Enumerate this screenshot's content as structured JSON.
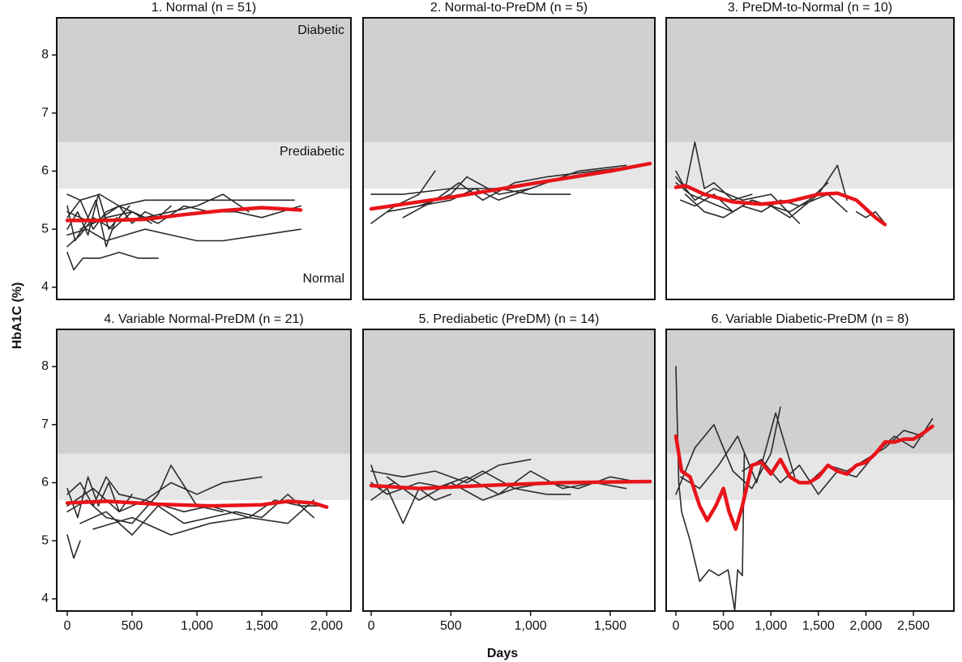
{
  "ylabel": "HbA1C (%)",
  "xlabel": "Days",
  "chart_data": [
    {
      "type": "line",
      "title": "1. Normal (n = 51)",
      "xlim": [
        -81,
        2187
      ],
      "ylim": [
        3.79,
        8.64
      ],
      "yticks": [
        4,
        5,
        6,
        7,
        8
      ],
      "bands": [
        5.7,
        6.5
      ],
      "band_colors": [
        "#e6e6e6",
        "#d0d0d0"
      ],
      "band_labels": [
        "Normal",
        "Prediabetic",
        "Diabetic"
      ],
      "series": [
        {
          "color": "#2b2b2b",
          "x": [
            0,
            100,
            200,
            300,
            400,
            500,
            600,
            700,
            800
          ],
          "values": [
            5.2,
            5.5,
            5.0,
            5.3,
            5.4,
            5.1,
            5.3,
            5.2,
            5.4
          ]
        },
        {
          "color": "#2b2b2b",
          "x": [
            0,
            150,
            300,
            450,
            600,
            800,
            1000,
            1200,
            1500,
            1800
          ],
          "values": [
            4.9,
            5.0,
            4.8,
            4.9,
            5.0,
            4.9,
            4.8,
            4.8,
            4.9,
            5.0
          ]
        },
        {
          "color": "#2b2b2b",
          "x": [
            0,
            50,
            120,
            250,
            400,
            550,
            700
          ],
          "values": [
            4.6,
            4.3,
            4.5,
            4.5,
            4.6,
            4.5,
            4.5
          ]
        },
        {
          "color": "#2b2b2b",
          "x": [
            0,
            100,
            250,
            400,
            600,
            900,
            1200,
            1500,
            1750
          ],
          "values": [
            5.6,
            5.5,
            5.6,
            5.4,
            5.5,
            5.5,
            5.5,
            5.5,
            5.5
          ]
        },
        {
          "color": "#2b2b2b",
          "x": [
            0,
            80,
            160,
            240,
            320,
            400,
            480
          ],
          "values": [
            5.0,
            5.3,
            4.9,
            5.6,
            5.0,
            5.2,
            5.4
          ]
        },
        {
          "color": "#2b2b2b",
          "x": [
            0,
            200,
            400,
            600,
            800,
            1000,
            1200,
            1400
          ],
          "values": [
            5.3,
            5.1,
            5.4,
            5.2,
            5.3,
            5.4,
            5.6,
            5.3
          ]
        },
        {
          "color": "#2b2b2b",
          "x": [
            0,
            60,
            140,
            220,
            300,
            380
          ],
          "values": [
            5.4,
            4.8,
            5.1,
            5.5,
            4.7,
            5.2
          ]
        },
        {
          "color": "#2b2b2b",
          "x": [
            100,
            300,
            500,
            700,
            900,
            1100,
            1300,
            1500,
            1800
          ],
          "values": [
            5.0,
            5.2,
            5.3,
            5.1,
            5.4,
            5.3,
            5.3,
            5.2,
            5.4
          ]
        },
        {
          "color": "#2b2b2b",
          "x": [
            0,
            100,
            200,
            350,
            500,
            650
          ],
          "values": [
            4.7,
            4.9,
            5.2,
            5.0,
            5.3,
            5.1
          ]
        }
      ],
      "trend": {
        "color": "#e8141b",
        "x": [
          0,
          300,
          600,
          900,
          1200,
          1500,
          1800
        ],
        "values": [
          5.15,
          5.15,
          5.17,
          5.25,
          5.32,
          5.37,
          5.33
        ]
      }
    },
    {
      "type": "line",
      "title": "2. Normal-to-PreDM (n = 5)",
      "xlim": [
        -51,
        1780
      ],
      "ylim": [
        3.79,
        8.64
      ],
      "bands": [
        5.7,
        6.5
      ],
      "band_colors": [
        "#e6e6e6",
        "#d0d0d0"
      ],
      "series": [
        {
          "color": "#2b2b2b",
          "x": [
            0,
            200,
            500,
            800,
            1000,
            1250
          ],
          "values": [
            5.6,
            5.6,
            5.7,
            5.7,
            5.6,
            5.6
          ]
        },
        {
          "color": "#2b2b2b",
          "x": [
            0,
            150,
            300,
            400
          ],
          "values": [
            5.1,
            5.4,
            5.6,
            6.0
          ]
        },
        {
          "color": "#2b2b2b",
          "x": [
            100,
            300,
            500,
            600,
            800,
            1000,
            1300,
            1600
          ],
          "values": [
            5.3,
            5.4,
            5.6,
            5.9,
            5.6,
            5.7,
            6.0,
            6.1
          ]
        },
        {
          "color": "#2b2b2b",
          "x": [
            200,
            400,
            550,
            700,
            900,
            1100,
            1400,
            1700
          ],
          "values": [
            5.2,
            5.5,
            5.8,
            5.5,
            5.8,
            5.9,
            6.0,
            6.1
          ]
        },
        {
          "color": "#2b2b2b",
          "x": [
            300,
            500,
            650,
            800,
            1000
          ],
          "values": [
            5.4,
            5.5,
            5.7,
            5.5,
            5.7
          ]
        }
      ],
      "trend": {
        "color": "#e8141b",
        "x": [
          0,
          500,
          1000,
          1500,
          1750
        ],
        "values": [
          5.35,
          5.55,
          5.78,
          6.0,
          6.13
        ]
      }
    },
    {
      "type": "line",
      "title": "3. PreDM-to-Normal (n = 10)",
      "xlim": [
        -102,
        2926
      ],
      "ylim": [
        3.79,
        8.64
      ],
      "bands": [
        5.7,
        6.5
      ],
      "band_colors": [
        "#e6e6e6",
        "#d0d0d0"
      ],
      "series": [
        {
          "color": "#2b2b2b",
          "x": [
            0,
            100,
            200,
            300,
            400,
            600,
            800
          ],
          "values": [
            6.0,
            5.7,
            6.5,
            5.7,
            5.8,
            5.5,
            5.6
          ]
        },
        {
          "color": "#2b2b2b",
          "x": [
            0,
            150,
            300,
            450,
            600,
            800,
            1000,
            1200,
            1400,
            1600
          ],
          "values": [
            5.8,
            5.6,
            5.5,
            5.4,
            5.3,
            5.5,
            5.4,
            5.3,
            5.5,
            5.8
          ]
        },
        {
          "color": "#2b2b2b",
          "x": [
            50,
            200,
            400,
            600,
            800,
            1000,
            1200,
            1500,
            1700,
            1800
          ],
          "values": [
            5.5,
            5.4,
            5.6,
            5.3,
            5.5,
            5.4,
            5.2,
            5.6,
            6.1,
            5.5
          ]
        },
        {
          "color": "#2b2b2b",
          "x": [
            100,
            300,
            500,
            700,
            900,
            1100,
            1300,
            1600,
            1800
          ],
          "values": [
            5.6,
            5.3,
            5.2,
            5.4,
            5.3,
            5.5,
            5.4,
            5.6,
            5.3
          ]
        },
        {
          "color": "#2b2b2b",
          "x": [
            1900,
            2000,
            2100,
            2200
          ],
          "values": [
            5.3,
            5.2,
            5.3,
            5.1
          ]
        },
        {
          "color": "#2b2b2b",
          "x": [
            0,
            200,
            400,
            700,
            1000,
            1300
          ],
          "values": [
            5.9,
            5.5,
            5.7,
            5.5,
            5.6,
            5.1
          ]
        }
      ],
      "trend": {
        "color": "#e8141b",
        "x": [
          0,
          100,
          300,
          600,
          900,
          1200,
          1500,
          1700,
          1900,
          2100,
          2200
        ],
        "values": [
          5.72,
          5.75,
          5.6,
          5.47,
          5.43,
          5.48,
          5.6,
          5.62,
          5.5,
          5.2,
          5.08
        ]
      }
    },
    {
      "type": "line",
      "title": "4. Variable Normal-PreDM (n = 21)",
      "xlim": [
        -81,
        2187
      ],
      "ylim": [
        3.79,
        8.64
      ],
      "yticks": [
        4,
        5,
        6,
        7,
        8
      ],
      "xticks": [
        0,
        500,
        {
          "value": 1000,
          "label": "1,000"
        },
        {
          "value": 1500,
          "label": "1,500"
        },
        {
          "value": 2000,
          "label": "2,000"
        }
      ],
      "bands": [
        5.7,
        6.5
      ],
      "band_colors": [
        "#e6e6e6",
        "#d0d0d0"
      ],
      "series": [
        {
          "color": "#2b2b2b",
          "x": [
            0,
            50,
            100
          ],
          "values": [
            5.1,
            4.7,
            5.0
          ]
        },
        {
          "color": "#2b2b2b",
          "x": [
            0,
            100,
            200,
            300,
            400,
            600,
            800,
            1000,
            1200,
            1500
          ],
          "values": [
            5.8,
            6.0,
            5.6,
            6.1,
            5.8,
            5.7,
            6.0,
            5.8,
            6.0,
            6.1
          ]
        },
        {
          "color": "#2b2b2b",
          "x": [
            0,
            150,
            300,
            500,
            700,
            800,
            1000,
            1200
          ],
          "values": [
            5.5,
            5.7,
            5.4,
            5.3,
            5.8,
            6.3,
            5.6,
            5.5
          ]
        },
        {
          "color": "#2b2b2b",
          "x": [
            100,
            300,
            500,
            700,
            900,
            1100,
            1300,
            1500,
            1700,
            1900
          ],
          "values": [
            5.3,
            5.5,
            5.1,
            5.6,
            5.3,
            5.4,
            5.5,
            5.4,
            5.8,
            5.4
          ]
        },
        {
          "color": "#2b2b2b",
          "x": [
            0,
            200,
            400,
            600,
            900,
            1100,
            1400,
            1600,
            1800,
            2000
          ],
          "values": [
            5.6,
            5.9,
            5.5,
            5.7,
            5.5,
            5.6,
            5.4,
            5.7,
            5.6,
            5.6
          ]
        },
        {
          "color": "#2b2b2b",
          "x": [
            0,
            80,
            160,
            240,
            320,
            400,
            500
          ],
          "values": [
            5.9,
            5.4,
            6.1,
            5.6,
            6.0,
            5.5,
            5.8
          ]
        },
        {
          "color": "#2b2b2b",
          "x": [
            200,
            500,
            800,
            1100,
            1400,
            1700,
            1900
          ],
          "values": [
            5.2,
            5.4,
            5.1,
            5.3,
            5.4,
            5.3,
            5.7
          ]
        }
      ],
      "trend": {
        "color": "#e8141b",
        "x": [
          0,
          300,
          700,
          1100,
          1500,
          1700,
          1900,
          2000
        ],
        "values": [
          5.65,
          5.68,
          5.63,
          5.6,
          5.62,
          5.68,
          5.65,
          5.58
        ]
      }
    },
    {
      "type": "line",
      "title": "5. Prediabetic (PreDM) (n = 14)",
      "xlim": [
        -51,
        1780
      ],
      "ylim": [
        3.79,
        8.64
      ],
      "xticks": [
        0,
        500,
        {
          "value": 1000,
          "label": "1,000"
        },
        {
          "value": 1500,
          "label": "1,500"
        }
      ],
      "bands": [
        5.7,
        6.5
      ],
      "band_colors": [
        "#e6e6e6",
        "#d0d0d0"
      ],
      "series": [
        {
          "color": "#2b2b2b",
          "x": [
            0,
            100,
            200,
            300,
            400,
            500
          ],
          "values": [
            5.7,
            5.9,
            5.3,
            5.9,
            5.7,
            5.8
          ]
        },
        {
          "color": "#2b2b2b",
          "x": [
            0,
            200,
            400,
            600,
            800,
            1000
          ],
          "values": [
            6.2,
            6.1,
            6.2,
            6.0,
            6.3,
            6.4
          ]
        },
        {
          "color": "#2b2b2b",
          "x": [
            0,
            100,
            300,
            500,
            700,
            900,
            1100,
            1300,
            1500,
            1700
          ],
          "values": [
            6.0,
            5.8,
            6.0,
            5.9,
            6.2,
            5.9,
            6.0,
            5.9,
            6.1,
            6.0
          ]
        },
        {
          "color": "#2b2b2b",
          "x": [
            100,
            300,
            500,
            700,
            900,
            1100,
            1250
          ],
          "values": [
            6.1,
            5.7,
            6.0,
            5.7,
            5.9,
            5.8,
            5.8
          ]
        },
        {
          "color": "#2b2b2b",
          "x": [
            400,
            600,
            800,
            1000,
            1200,
            1400,
            1600
          ],
          "values": [
            5.9,
            6.1,
            5.8,
            6.2,
            5.9,
            6.0,
            5.9
          ]
        },
        {
          "color": "#2b2b2b",
          "x": [
            0,
            50,
            150
          ],
          "values": [
            6.3,
            5.9,
            6.0
          ]
        }
      ],
      "trend": {
        "color": "#e8141b",
        "x": [
          0,
          300,
          700,
          1200,
          1750
        ],
        "values": [
          5.95,
          5.9,
          5.95,
          6.0,
          6.02
        ]
      }
    },
    {
      "type": "line",
      "title": "6. Variable Diabetic-PreDM (n = 8)",
      "xlim": [
        -102,
        2926
      ],
      "ylim": [
        3.79,
        8.64
      ],
      "xticks": [
        0,
        500,
        {
          "value": 1000,
          "label": "1,000"
        },
        {
          "value": 1500,
          "label": "1,500"
        },
        {
          "value": 2000,
          "label": "2,000"
        },
        {
          "value": 2500,
          "label": "2,500"
        }
      ],
      "bands": [
        5.7,
        6.5
      ],
      "band_colors": [
        "#e6e6e6",
        "#d0d0d0"
      ],
      "series": [
        {
          "color": "#2b2b2b",
          "x": [
            0,
            30,
            60,
            150,
            250,
            350,
            450,
            550,
            620,
            650,
            700,
            720
          ],
          "values": [
            8.0,
            6.0,
            5.5,
            5.0,
            4.3,
            4.5,
            4.4,
            4.5,
            3.8,
            4.5,
            4.4,
            6.5
          ]
        },
        {
          "color": "#2b2b2b",
          "x": [
            0,
            200,
            400,
            600,
            800,
            1000,
            1100
          ],
          "values": [
            5.8,
            6.6,
            7.0,
            6.2,
            5.9,
            6.5,
            7.3
          ]
        },
        {
          "color": "#2b2b2b",
          "x": [
            50,
            250,
            450,
            650,
            850,
            1050,
            1250
          ],
          "values": [
            6.1,
            5.9,
            6.3,
            6.8,
            6.0,
            7.2,
            6.1
          ]
        },
        {
          "color": "#2b2b2b",
          "x": [
            700,
            900,
            1100,
            1300,
            1500,
            1700,
            1900,
            2100,
            2300,
            2500,
            2700
          ],
          "values": [
            6.2,
            6.4,
            6.0,
            6.3,
            5.8,
            6.2,
            6.1,
            6.5,
            6.8,
            6.6,
            7.1
          ]
        },
        {
          "color": "#2b2b2b",
          "x": [
            1400,
            1600,
            1800,
            2000,
            2200,
            2400,
            2600
          ],
          "values": [
            6.0,
            6.3,
            6.2,
            6.4,
            6.6,
            6.9,
            6.8
          ]
        }
      ],
      "trend": {
        "color": "#e8141b",
        "x": [
          0,
          60,
          150,
          250,
          330,
          420,
          500,
          560,
          630,
          700,
          800,
          900,
          1000,
          1100,
          1200,
          1300,
          1400,
          1500,
          1600,
          1700,
          1800,
          1900,
          2000,
          2100,
          2200,
          2300,
          2400,
          2500,
          2600,
          2700
        ],
        "values": [
          6.8,
          6.2,
          6.1,
          5.6,
          5.35,
          5.6,
          5.9,
          5.5,
          5.2,
          5.6,
          6.3,
          6.35,
          6.15,
          6.4,
          6.1,
          6.0,
          6.0,
          6.1,
          6.3,
          6.2,
          6.15,
          6.3,
          6.35,
          6.5,
          6.7,
          6.7,
          6.75,
          6.75,
          6.85,
          6.97
        ]
      }
    }
  ]
}
